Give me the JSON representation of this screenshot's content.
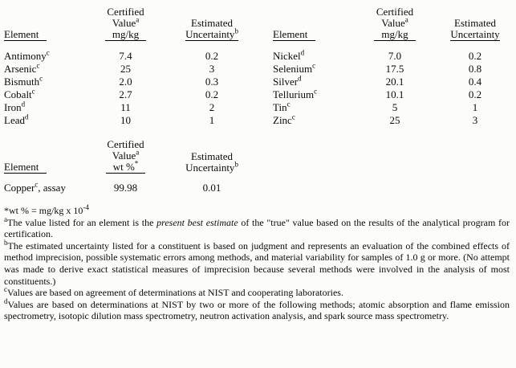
{
  "tables": {
    "left": {
      "header": {
        "element": "Element",
        "certified": "Certified",
        "value": "Value",
        "value_sup": "a",
        "unit": "mg/kg",
        "estimated": "Estimated",
        "uncertainty": "Uncertainty",
        "uncertainty_sup": "b"
      },
      "rows": [
        {
          "element": "Antimony",
          "sup": "c",
          "value": "7.4",
          "uncertainty": "0.2"
        },
        {
          "element": "Arsenic",
          "sup": "c",
          "value": "25",
          "uncertainty": "3"
        },
        {
          "element": "Bismuth",
          "sup": "c",
          "value": "2.0",
          "uncertainty": "0.3"
        },
        {
          "element": "Cobalt",
          "sup": "c",
          "value": "2.7",
          "uncertainty": "0.2"
        },
        {
          "element": "Iron",
          "sup": "d",
          "value": "11",
          "uncertainty": "2"
        },
        {
          "element": "Lead",
          "sup": "d",
          "value": "10",
          "uncertainty": "1"
        }
      ]
    },
    "right": {
      "header": {
        "element": "Element",
        "certified": "Certified",
        "value": "Value",
        "value_sup": "a",
        "unit": "mg/kg",
        "estimated": "Estimated",
        "uncertainty": "Uncertainty"
      },
      "rows": [
        {
          "element": "Nickel",
          "sup": "d",
          "value": "7.0",
          "uncertainty": "0.2"
        },
        {
          "element": "Selenium",
          "sup": "c",
          "value": "17.5",
          "uncertainty": "0.8"
        },
        {
          "element": "Silver",
          "sup": "d",
          "value": "20.1",
          "uncertainty": "0.4"
        },
        {
          "element": "Tellurium",
          "sup": "c",
          "value": "10.1",
          "uncertainty": "0.2"
        },
        {
          "element": "Tin",
          "sup": "c",
          "value": "5",
          "uncertainty": "1"
        },
        {
          "element": "Zinc",
          "sup": "c",
          "value": "25",
          "uncertainty": "3"
        }
      ]
    },
    "assay": {
      "header": {
        "element": "Element",
        "certified": "Certified",
        "value": "Value",
        "value_sup": "a",
        "unit": "wt %",
        "unit_sup": "*",
        "estimated": "Estimated",
        "uncertainty": "Uncertainty",
        "uncertainty_sup": "b"
      },
      "row": {
        "element": "Copper",
        "sup": "c",
        "suffix": ", assay",
        "value": "99.98",
        "uncertainty": "0.01"
      }
    }
  },
  "footnotes": {
    "star": {
      "prefix": "*",
      "text": "wt % = mg/kg x 10",
      "exponent": "-4"
    },
    "a": {
      "marker": "a",
      "part1": "The value listed for an element is the ",
      "italic": "present best estimate",
      "part2": " of the \"true\" value based on the results of the analytical program for certification."
    },
    "b": {
      "marker": "b",
      "text": "The estimated uncertainty listed for a constituent is based on judgment and represents an evaluation of the combined effects of method imprecision, possible systematic errors among methods, and material variability for samples of 1.0 g or more.  (No attempt was made to derive exact statistical measures of imprecision because several methods were involved in the analysis of most constituents.)"
    },
    "c": {
      "marker": "c",
      "text": "Values are based on agreement of determinations at NIST and cooperating laboratories."
    },
    "d": {
      "marker": "d",
      "text": "Values are based on determinations at NIST by two or more of the following methods; atomic absorption and flame emission spectrometry, isotopic dilution mass spectrometry, neutron activation analysis, and spark source mass spectrometry."
    }
  }
}
